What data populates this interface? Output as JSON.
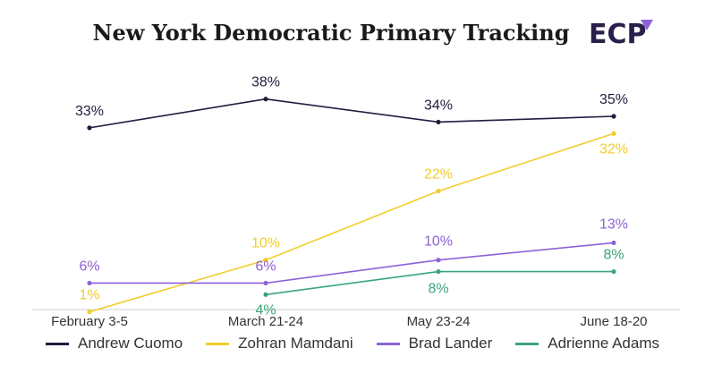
{
  "header": {
    "logo_text": "ECP"
  },
  "chart_data": {
    "type": "line",
    "title": "New York Democratic Primary Tracking",
    "xlabel": "",
    "ylabel": "",
    "categories": [
      "February 3-5",
      "March 21-24",
      "May 23-24",
      "June 18-20"
    ],
    "ylim": [
      0,
      42
    ],
    "grid": false,
    "legend_position": "bottom",
    "series": [
      {
        "name": "Andrew Cuomo",
        "color": "#241a3f",
        "values": [
          33,
          38,
          34,
          35
        ],
        "labels": [
          "33%",
          "38%",
          "34%",
          "35%"
        ]
      },
      {
        "name": "Zohran Mamdani",
        "color": "#f2cd2a",
        "values": [
          1,
          10,
          22,
          32
        ],
        "labels": [
          "1%",
          "10%",
          "22%",
          "32%"
        ]
      },
      {
        "name": "Brad Lander",
        "color": "#8d62d9",
        "values": [
          6,
          6,
          10,
          13
        ],
        "labels": [
          "6%",
          "6%",
          "10%",
          "13%"
        ]
      },
      {
        "name": "Adrienne Adams",
        "color": "#3ba57a",
        "values": [
          null,
          4,
          8,
          8
        ],
        "labels": [
          "",
          "4%",
          "8%",
          "8%"
        ]
      }
    ]
  }
}
